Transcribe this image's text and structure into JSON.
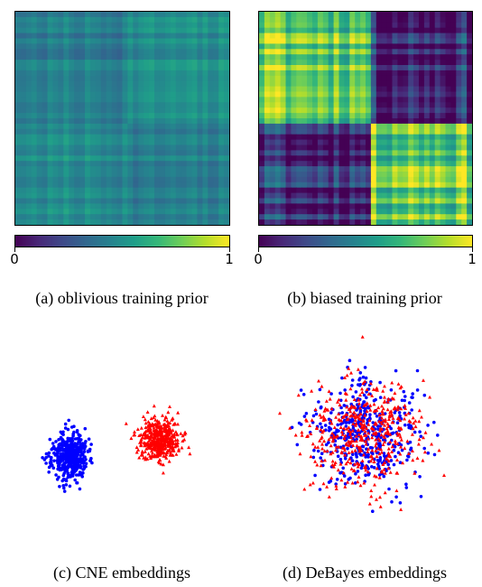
{
  "figure": {
    "panels": [
      {
        "id": "a",
        "caption": "(a) oblivious training prior",
        "colorbar": {
          "min_label": "0",
          "max_label": "1"
        }
      },
      {
        "id": "b",
        "caption": "(b) biased training prior",
        "colorbar": {
          "min_label": "0",
          "max_label": "1"
        }
      },
      {
        "id": "c",
        "caption": "(c) CNE embeddings"
      },
      {
        "id": "d",
        "caption": "(d) DeBayes embeddings"
      }
    ],
    "colors": {
      "viridis_dark": "#440154",
      "viridis_mid": "#21918c",
      "viridis_light": "#fde725",
      "group_blue": "#0000ff",
      "group_red": "#ff0000"
    }
  },
  "chart_data": [
    {
      "type": "heatmap",
      "panel": "a",
      "title": "",
      "colormap": "viridis",
      "range": [
        0,
        1
      ],
      "blocks": 2,
      "block_split_fraction": 0.53,
      "approx_values": {
        "within_block": 0.45,
        "across_block": 0.45,
        "variation": "low"
      }
    },
    {
      "type": "heatmap",
      "panel": "b",
      "title": "",
      "colormap": "viridis",
      "range": [
        0,
        1
      ],
      "blocks": 2,
      "block_split_fraction": 0.53,
      "approx_values": {
        "within_block": 0.8,
        "across_block": 0.15,
        "variation": "high"
      }
    },
    {
      "type": "scatter",
      "panel": "c",
      "series": [
        {
          "marker": "circle",
          "color": "#0000ff",
          "cluster_center": [
            -1.0,
            -0.1
          ],
          "spread": [
            0.35,
            0.45
          ],
          "count": 450
        },
        {
          "marker": "triangle",
          "color": "#ff0000",
          "cluster_center": [
            0.9,
            0.25
          ],
          "spread": [
            0.4,
            0.4
          ],
          "count": 450
        }
      ]
    },
    {
      "type": "scatter",
      "panel": "d",
      "series": [
        {
          "marker": "circle",
          "color": "#0000ff",
          "cluster_center": [
            0.0,
            0.0
          ],
          "spread": [
            1.0,
            1.0
          ],
          "count": 450
        },
        {
          "marker": "triangle",
          "color": "#ff0000",
          "cluster_center": [
            0.0,
            0.0
          ],
          "spread": [
            1.0,
            1.0
          ],
          "count": 450
        }
      ]
    }
  ]
}
